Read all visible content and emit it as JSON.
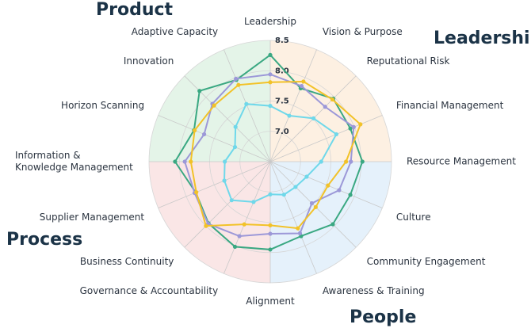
{
  "chart_data": {
    "type": "radar",
    "categories": [
      "Leadership",
      "Vision & Purpose",
      "Reputational Risk",
      "Financial Management",
      "Resource Management",
      "Culture",
      "Community Engagement",
      "Awareness & Training",
      "Alignment",
      "Governance & Accountability",
      "Business Continuity",
      "Supplier Management",
      "Information & Knowledge Management",
      "Horizon Scanning",
      "Innovation",
      "Adaptive Capacity"
    ],
    "series": [
      {
        "color": "#3aa882",
        "values": [
          8.26,
          7.81,
          7.97,
          7.93,
          8.02,
          7.93,
          7.96,
          7.83,
          7.95,
          8.02,
          7.94,
          7.83,
          8.07,
          7.86,
          8.15,
          7.96
        ]
      },
      {
        "color": "#9c98d8",
        "values": [
          7.94,
          7.85,
          7.78,
          7.99,
          7.83,
          7.73,
          7.47,
          7.78,
          7.69,
          7.83,
          7.95,
          7.85,
          7.91,
          7.68,
          7.85,
          7.98
        ]
      },
      {
        "color": "#f2c228",
        "values": [
          7.81,
          7.93,
          7.95,
          8.11,
          7.75,
          7.53,
          7.56,
          7.69,
          7.55,
          7.62,
          8.0,
          7.82,
          7.81,
          7.85,
          7.81,
          7.87
        ]
      },
      {
        "color": "#6fd8ea",
        "values": [
          7.42,
          7.32,
          7.51,
          7.68,
          7.34,
          7.15,
          7.09,
          7.09,
          7.04,
          7.22,
          7.4,
          7.32,
          7.25,
          7.13,
          7.31,
          7.53
        ]
      }
    ],
    "ylim": [
      6.5,
      8.5
    ],
    "yticks": [
      {
        "value": 7,
        "label": "7.0"
      },
      7.5,
      {
        "value": 8,
        "label": "8.0"
      },
      8.5
    ],
    "groups": [
      {
        "name": "Leadership",
        "color": "#fdf0e2"
      },
      {
        "name": "People",
        "color": "#e5f1fb"
      },
      {
        "name": "Process",
        "color": "#fae6e6"
      },
      {
        "name": "Product",
        "color": "#e4f4e8"
      }
    ]
  }
}
